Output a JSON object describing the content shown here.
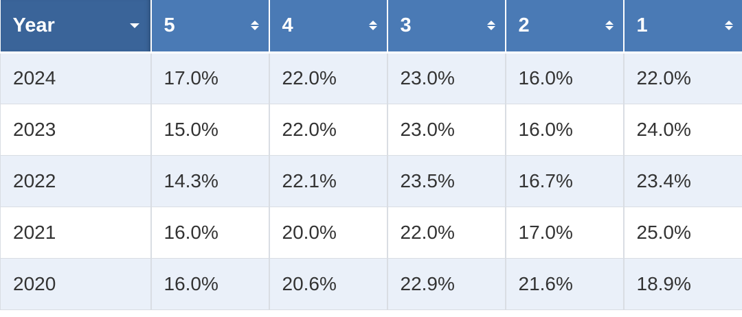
{
  "table": {
    "headers": [
      "Year",
      "5",
      "4",
      "3",
      "2",
      "1"
    ],
    "rows": [
      {
        "year": "2024",
        "values": [
          "17.0%",
          "22.0%",
          "23.0%",
          "16.0%",
          "22.0%"
        ]
      },
      {
        "year": "2023",
        "values": [
          "15.0%",
          "22.0%",
          "23.0%",
          "16.0%",
          "24.0%"
        ]
      },
      {
        "year": "2022",
        "values": [
          "14.3%",
          "22.1%",
          "23.5%",
          "16.7%",
          "23.4%"
        ]
      },
      {
        "year": "2021",
        "values": [
          "16.0%",
          "20.0%",
          "22.0%",
          "17.0%",
          "25.0%"
        ]
      },
      {
        "year": "2020",
        "values": [
          "16.0%",
          "20.6%",
          "22.9%",
          "21.6%",
          "18.9%"
        ]
      }
    ]
  },
  "colors": {
    "header_active": "#3a6499",
    "header": "#4a7ab5",
    "row_striped": "#eaf0f9",
    "row_plain": "#ffffff"
  }
}
